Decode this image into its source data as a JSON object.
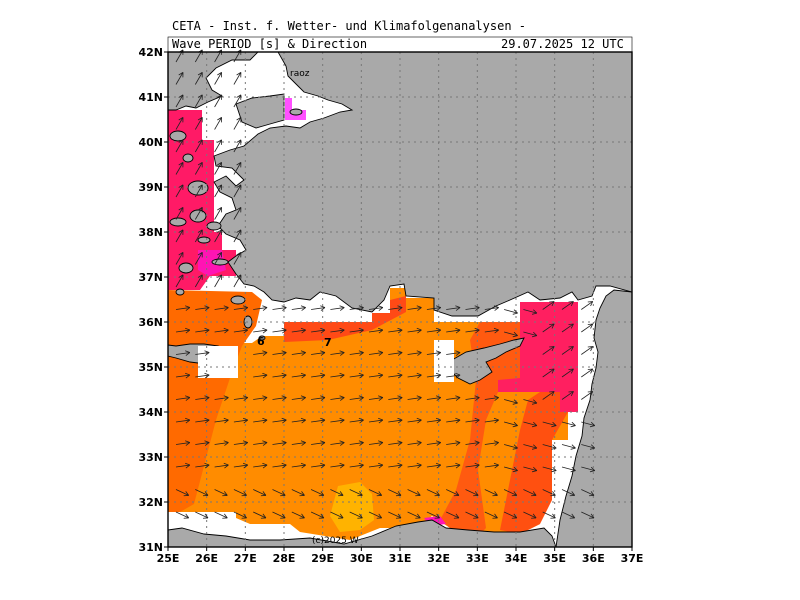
{
  "header": {
    "institute": "CETA - Inst. f. Wetter- und Klimafolgenanalysen -",
    "product": "Wave PERIOD [s] & Direction",
    "datetime": "29.07.2025 12 UTC"
  },
  "map": {
    "lon_range": [
      25,
      37
    ],
    "lat_range": [
      31,
      42
    ],
    "lon_ticks": [
      "25E",
      "26E",
      "27E",
      "28E",
      "29E",
      "30E",
      "31E",
      "32E",
      "33E",
      "34E",
      "35E",
      "36E",
      "37E"
    ],
    "lat_ticks": [
      "31N",
      "32N",
      "33N",
      "34N",
      "35N",
      "36N",
      "37N",
      "38N",
      "39N",
      "40N",
      "41N",
      "42N"
    ],
    "land_color": "#a9a9a9",
    "sea_color": "#ffffff",
    "contour_labels": [
      "6",
      "7"
    ],
    "copyright": "(c)2025 W",
    "place_fragment": "raoz"
  },
  "legend_colors": {
    "period_5": "#ff6a00",
    "period_6": "#ff8c00",
    "period_7": "#ffb300",
    "period_8": "#ff1f60",
    "period_9": "#ff14b4",
    "period_10": "#ff50ff"
  }
}
